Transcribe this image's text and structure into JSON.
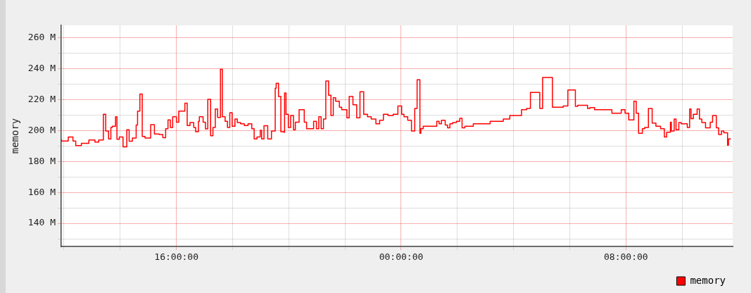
{
  "chart_data": {
    "type": "step",
    "ylabel": "memory",
    "xlim": [
      "--01-01T11:54",
      "--01-02T11:48"
    ],
    "ylim": [
      125,
      268
    ],
    "xticks": [
      {
        "value": "--01-01T12:00",
        "label": null
      },
      {
        "value": "--01-01T14:00",
        "label": null
      },
      {
        "value": "--01-01T16:00",
        "label": "16:00:00"
      },
      {
        "value": "--01-01T18:00",
        "label": null
      },
      {
        "value": "--01-01T20:00",
        "label": null
      },
      {
        "value": "--01-01T22:00",
        "label": null
      },
      {
        "value": "--01-02T00:00",
        "label": "00:00:00"
      },
      {
        "value": "--01-02T02:00",
        "label": null
      },
      {
        "value": "--01-02T04:00",
        "label": null
      },
      {
        "value": "--01-02T06:00",
        "label": null
      },
      {
        "value": "--01-02T08:00",
        "label": "08:00:00"
      },
      {
        "value": "--01-02T10:00",
        "label": null
      }
    ],
    "yticks": [
      {
        "value": 130,
        "label": null
      },
      {
        "value": 140,
        "label": "140 M"
      },
      {
        "value": 150,
        "label": null
      },
      {
        "value": 160,
        "label": "160 M"
      },
      {
        "value": 170,
        "label": null
      },
      {
        "value": 180,
        "label": "180 M"
      },
      {
        "value": 190,
        "label": null
      },
      {
        "value": 200,
        "label": "200 M"
      },
      {
        "value": 210,
        "label": null
      },
      {
        "value": 220,
        "label": "220 M"
      },
      {
        "value": 230,
        "label": null
      },
      {
        "value": 240,
        "label": "240 M"
      },
      {
        "value": 250,
        "label": null
      },
      {
        "value": 260,
        "label": "260 M"
      }
    ],
    "grid": true,
    "legend": "bottom right",
    "marker": "none",
    "line_style": "solid",
    "series": [
      {
        "name": "memory",
        "color": "#ff0000",
        "x": [
          "--01-01T11:54",
          "--01-01T12:09",
          "--01-01T12:19",
          "--01-01T12:25",
          "--01-01T12:37",
          "--01-01T12:53",
          "--01-01T12:58",
          "--01-01T13:06",
          "--01-01T13:14",
          "--01-01T13:24",
          "--01-01T13:29",
          "--01-01T13:35",
          "--01-01T13:40",
          "--01-01T13:43",
          "--01-01T13:50",
          "--01-01T13:53",
          "--01-01T13:58",
          "--01-01T14:06",
          "--01-01T14:14",
          "--01-01T14:19",
          "--01-01T14:26",
          "--01-01T14:34",
          "--01-01T14:37",
          "--01-01T14:42",
          "--01-01T14:47",
          "--01-01T14:53",
          "--01-01T15:05",
          "--01-01T15:13",
          "--01-01T15:23",
          "--01-01T15:31",
          "--01-01T15:37",
          "--01-01T15:42",
          "--01-01T15:47",
          "--01-01T15:52",
          "--01-01T16:00",
          "--01-01T16:05",
          "--01-01T16:18",
          "--01-01T16:23",
          "--01-01T16:29",
          "--01-01T16:37",
          "--01-01T16:41",
          "--01-01T16:47",
          "--01-01T16:49",
          "--01-01T16:57",
          "--01-01T17:02",
          "--01-01T17:07",
          "--01-01T17:13",
          "--01-01T17:18",
          "--01-01T17:23",
          "--01-01T17:28",
          "--01-01T17:34",
          "--01-01T17:38",
          "--01-01T17:44",
          "--01-01T17:49",
          "--01-01T17:54",
          "--01-01T17:59",
          "--01-01T18:05",
          "--01-01T18:10",
          "--01-01T18:17",
          "--01-01T18:25",
          "--01-01T18:33",
          "--01-01T18:41",
          "--01-01T18:46",
          "--01-01T18:52",
          "--01-01T18:59",
          "--01-01T19:02",
          "--01-01T19:07",
          "--01-01T19:15",
          "--01-01T19:23",
          "--01-01T19:31",
          "--01-01T19:33",
          "--01-01T19:38",
          "--01-01T19:43",
          "--01-01T19:49",
          "--01-01T19:51",
          "--01-01T19:54",
          "--01-01T19:59",
          "--01-01T20:04",
          "--01-01T20:10",
          "--01-01T20:14",
          "--01-01T20:22",
          "--01-01T20:33",
          "--01-01T20:38",
          "--01-01T20:53",
          "--01-01T20:59",
          "--01-01T21:04",
          "--01-01T21:09",
          "--01-01T21:14",
          "--01-01T21:19",
          "--01-01T21:25",
          "--01-01T21:30",
          "--01-01T21:35",
          "--01-01T21:40",
          "--01-01T21:48",
          "--01-01T21:53",
          "--01-01T22:04",
          "--01-01T22:09",
          "--01-01T22:17",
          "--01-01T22:25",
          "--01-01T22:32",
          "--01-01T22:40",
          "--01-01T22:48",
          "--01-01T22:56",
          "--01-01T23:06",
          "--01-01T23:14",
          "--01-01T23:22",
          "--01-01T23:32",
          "--01-01T23:43",
          "--01-01T23:53",
          "--01-02T00:01",
          "--01-02T00:06",
          "--01-02T00:14",
          "--01-02T00:22",
          "--01-02T00:29",
          "--01-02T00:34",
          "--01-02T00:40",
          "--01-02T00:42",
          "--01-02T00:47",
          "--01-02T00:55",
          "--01-02T01:16",
          "--01-02T01:21",
          "--01-02T01:26",
          "--01-02T01:34",
          "--01-02T01:39",
          "--01-02T01:44",
          "--01-02T01:50",
          "--01-02T01:58",
          "--01-02T02:05",
          "--01-02T02:10",
          "--01-02T02:16",
          "--01-02T02:34",
          "--01-02T03:10",
          "--01-02T03:38",
          "--01-02T03:52",
          "--01-02T04:17",
          "--01-02T04:28",
          "--01-02T04:36",
          "--01-02T04:56",
          "--01-02T05:02",
          "--01-02T05:23",
          "--01-02T05:28",
          "--01-02T05:46",
          "--01-02T05:56",
          "--01-02T06:12",
          "--01-02T06:17",
          "--01-02T06:38",
          "--01-02T06:43",
          "--01-02T06:53",
          "--01-02T07:11",
          "--01-02T07:30",
          "--01-02T07:50",
          "--01-02T07:58",
          "--01-02T08:06",
          "--01-02T08:17",
          "--01-02T08:22",
          "--01-02T08:27",
          "--01-02T08:35",
          "--01-02T08:40",
          "--01-02T08:48",
          "--01-02T08:56",
          "--01-02T09:04",
          "--01-02T09:14",
          "--01-02T09:22",
          "--01-02T09:27",
          "--01-02T09:35",
          "--01-02T09:37",
          "--01-02T09:43",
          "--01-02T09:47",
          "--01-02T09:53",
          "--01-02T09:58",
          "--01-02T10:06",
          "--01-02T10:11",
          "--01-02T10:16",
          "--01-02T10:19",
          "--01-02T10:24",
          "--01-02T10:32",
          "--01-02T10:37",
          "--01-02T10:42",
          "--01-02T10:50",
          "--01-02T11:00",
          "--01-02T11:05",
          "--01-02T11:13",
          "--01-02T11:18",
          "--01-02T11:24",
          "--01-02T11:29",
          "--01-02T11:37",
          "--01-02T11:39",
          "--01-02T11:44"
        ],
        "values": [
          194.6,
          193.2,
          195.8,
          193.2,
          190.2,
          191.7,
          193.9,
          193.9,
          192.5,
          193.9,
          210.5,
          199.7,
          194.6,
          202,
          202.8,
          208.9,
          194.3,
          195.8,
          189.4,
          200.5,
          193.1,
          195.1,
          203.6,
          212.5,
          223.6,
          196.2,
          195.1,
          203.8,
          197.7,
          197.4,
          195.4,
          201.2,
          206.9,
          202,
          208.9,
          205.4,
          212.5,
          217.7,
          203.2,
          205.1,
          202,
          199.2,
          205.9,
          208.9,
          205.4,
          201.1,
          220.2,
          196.6,
          202,
          213.9,
          208.5,
          239.7,
          208.9,
          205.9,
          202,
          211.5,
          202.8,
          207.4,
          205.1,
          204.3,
          203.2,
          204.3,
          201.2,
          194.6,
          195.8,
          200.1,
          194.6,
          203.1,
          194.6,
          199.7,
          227.4,
          230.5,
          222,
          199.2,
          198.9,
          224.3,
          210.5,
          202,
          209.7,
          200.5,
          205.4,
          213.5,
          205.4,
          201.2,
          205.9,
          201.2,
          208.9,
          201.2,
          207.4,
          232,
          222.8,
          209.7,
          221.2,
          218.9,
          215.1,
          213.5,
          208.2,
          222,
          216.6,
          208.2,
          225.1,
          210.5,
          208.9,
          207.4,
          204.3,
          206.6,
          210.5,
          209.7,
          210.5,
          215.8,
          210.5,
          208.9,
          206.6,
          199.7,
          214.3,
          232.8,
          198.2,
          201.2,
          202.8,
          202.8,
          205.9,
          204.3,
          206.6,
          203.6,
          201.7,
          204.3,
          205.1,
          205.9,
          207.9,
          201.7,
          202.8,
          204.3,
          205.9,
          207.4,
          209.7,
          213.5,
          214.3,
          224.6,
          214.3,
          234.3,
          215.1,
          215.1,
          215.8,
          226.2,
          215.6,
          216.3,
          214.3,
          214.8,
          213.5,
          213.5,
          211.2,
          213.5,
          211.2,
          206.9,
          218.9,
          211.2,
          198.2,
          201.2,
          202,
          214.3,
          204.8,
          202.8,
          201.2,
          195.8,
          198.9,
          205.4,
          199.7,
          207.4,
          200.5,
          205.1,
          204.3,
          204.3,
          202,
          213.9,
          207.7,
          210.5,
          213.9,
          207.4,
          205.1,
          201.7,
          205.4,
          209.7,
          201.7,
          197.4,
          199.7,
          198.6,
          190.5,
          194.6
        ]
      }
    ]
  }
}
